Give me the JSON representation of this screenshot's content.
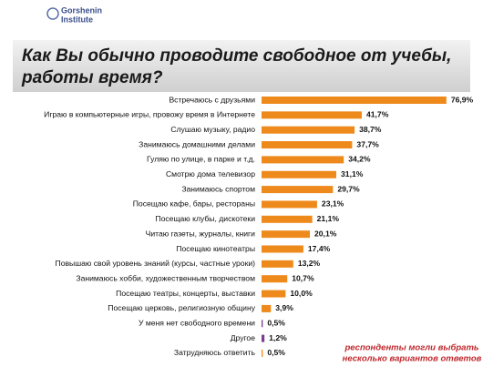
{
  "brand": [
    "Gorshenin",
    "Institute"
  ],
  "chart_data": {
    "type": "bar",
    "orientation": "horizontal",
    "title": [
      "Как Вы обычно проводите свободное от учебы,",
      "работы время?"
    ],
    "categories": [
      "Встречаюсь с друзьями",
      "Играю в компьютерные игры, провожу время в Интернете",
      "Слушаю музыку, радио",
      "Занимаюсь домашними делами",
      "Гуляю по улице, в парке и т.д.",
      "Смотрю дома телевизор",
      "Занимаюсь спортом",
      "Посещаю кафе, бары, рестораны",
      "Посещаю клубы, дискотеки",
      "Читаю газеты, журналы, книги",
      "Посещаю кинотеатры",
      "Повышаю свой уровень знаний (курсы, частные уроки)",
      "Занимаюсь хобби, художественным творчеством",
      "Посещаю театры, концерты, выставки",
      "Посещаю церковь, религиозную общину",
      "У меня нет свободного времени",
      "Другое",
      "Затрудняюсь ответить"
    ],
    "values": [
      76.9,
      41.7,
      38.7,
      37.7,
      34.2,
      31.1,
      29.7,
      23.1,
      21.1,
      20.1,
      17.4,
      13.2,
      10.7,
      10.0,
      3.9,
      0.5,
      1.2,
      0.5
    ],
    "value_labels": [
      "76,9%",
      "41,7%",
      "38,7%",
      "37,7%",
      "34,2%",
      "31,1%",
      "29,7%",
      "23,1%",
      "21,1%",
      "20,1%",
      "17,4%",
      "13,2%",
      "10,7%",
      "10,0%",
      "3,9%",
      "0,5%",
      "1,2%",
      "0,5%"
    ],
    "colors": [
      "#ee8a1c",
      "#ee8a1c",
      "#ee8a1c",
      "#ee8a1c",
      "#ee8a1c",
      "#ee8a1c",
      "#ee8a1c",
      "#ee8a1c",
      "#ee8a1c",
      "#ee8a1c",
      "#ee8a1c",
      "#ee8a1c",
      "#ee8a1c",
      "#ee8a1c",
      "#ee8a1c",
      "#7b3d8c",
      "#7b3d8c",
      "#ee8a1c"
    ],
    "xlim": [
      0,
      80
    ],
    "note": [
      "респонденты могли выбрать",
      "несколько вариантов ответов"
    ]
  }
}
